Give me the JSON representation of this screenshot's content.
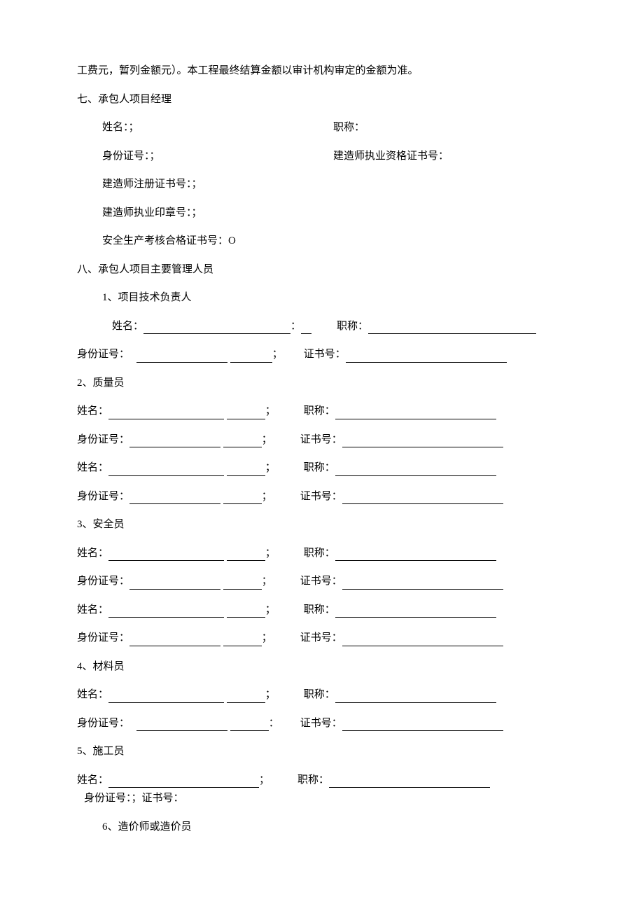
{
  "text": {
    "p_top": "工费元，暂列金额元）。本工程最终结算金额以审计机构审定的金额为准。",
    "s7": "七、承包人项目经理",
    "s7_name": "姓名：；",
    "s7_title": "职称：",
    "s7_id": "身份证号：；",
    "s7_jzs": "建造师执业资格证书号：",
    "s7_jzs_reg": "建造师注册证书号：；",
    "s7_jzs_seal": "建造师执业印章号：；",
    "s7_safety": "安全生产考核合格证书号：O",
    "s8": "八、承包人项目主要管理人员",
    "s8_1": "1、项目技术负责人",
    "s8_2": "2、质量员",
    "s8_3": "3、安全员",
    "s8_4": "4、材料员",
    "s8_5": "5、施工员",
    "s8_5_tail": "身份证号：；证书号：",
    "s8_6": "6、造价师或造价员",
    "lbl_name": "姓名：",
    "lbl_title": "职称：",
    "lbl_id": "身份证号：",
    "lbl_cert": "证书号：",
    "semi": "；",
    "colon": "："
  },
  "widths": {
    "indent_row1": 50,
    "l1a": 210,
    "l1b": 15,
    "gap1": 36,
    "l1c": 240,
    "l2a": 130,
    "l2b": 60,
    "gap2": 30,
    "l2c": 230,
    "l_name_a": 165,
    "l_name_b": 55,
    "l_title": 230,
    "l_id_a": 130,
    "l_id_b": 55,
    "l_cert": 230,
    "gap_mid": 40,
    "last_big": 215,
    "indent_id_line": 10
  }
}
